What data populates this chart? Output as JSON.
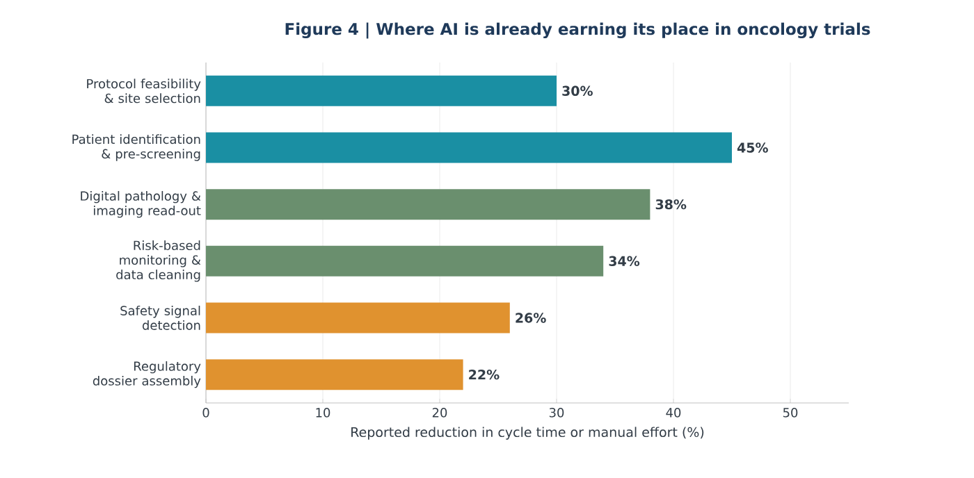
{
  "chart_data": {
    "type": "bar",
    "orientation": "horizontal",
    "title": "Figure 4  |  Where AI is already earning its place in oncology trials",
    "xlabel": "Reported reduction in cycle time or manual effort (%)",
    "categories": [
      "Protocol feasibility & site selection",
      "Patient identification & pre-screening",
      "Digital pathology & imaging read-out",
      "Risk-based monitoring & data cleaning",
      "Safety signal detection",
      "Regulatory dossier assembly"
    ],
    "values": [
      30,
      45,
      38,
      34,
      26,
      22
    ],
    "value_labels": [
      "30%",
      "45%",
      "38%",
      "34%",
      "26%",
      "22%"
    ],
    "colors": [
      "#1a8fa3",
      "#1a8fa3",
      "#6a8f6e",
      "#6a8f6e",
      "#e0922f",
      "#e0922f"
    ],
    "xlim": [
      0,
      55
    ],
    "xticks": [
      0,
      10,
      20,
      30,
      40,
      50
    ],
    "grid": "x"
  }
}
